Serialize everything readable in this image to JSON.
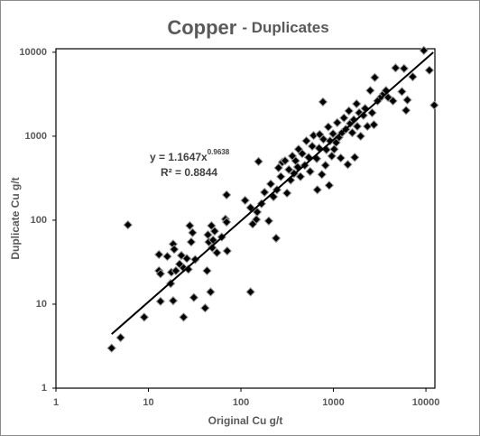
{
  "chart_data": {
    "type": "scatter",
    "title": "Copper",
    "subtitle": "- Duplicates",
    "x_label": "Original Cu g/t",
    "y_label": "Duplicate Cu g/t",
    "x_scale": "log",
    "y_scale": "log",
    "xlim": [
      1,
      12500
    ],
    "ylim": [
      1,
      11000
    ],
    "xticks": [
      1,
      10,
      100,
      1000,
      10000
    ],
    "yticks": [
      1,
      10,
      100,
      1000,
      10000
    ],
    "grid": false,
    "color": "#000000",
    "annotation": {
      "equation": "y = 1.1647x",
      "exponent": "0.9638",
      "r_squared": "R² = 0.8844"
    },
    "trendline": {
      "color": "#000000",
      "x": [
        4,
        12000
      ],
      "values": [
        4.4,
        9956
      ]
    },
    "x": [
      4,
      5,
      6,
      9,
      13,
      13,
      13.5,
      13.5,
      16,
      17.4,
      17.7,
      18.5,
      18.5,
      19,
      19.8,
      21.7,
      22.7,
      24,
      24,
      26,
      27,
      28,
      30,
      29,
      31,
      32,
      41,
      43,
      44,
      45,
      47,
      48,
      49,
      50,
      52,
      55,
      62,
      68,
      70,
      70,
      71,
      127,
      111,
      127,
      134,
      147,
      150,
      155,
      167,
      180,
      200,
      210,
      225,
      240,
      245,
      255,
      270,
      280,
      300,
      315,
      330,
      345,
      360,
      375,
      390,
      410,
      420,
      440,
      460,
      490,
      510,
      540,
      560,
      590,
      610,
      660,
      670,
      700,
      710,
      750,
      770,
      780,
      820,
      840,
      880,
      900,
      920,
      960,
      990,
      1020,
      1070,
      1100,
      1150,
      1200,
      1240,
      1300,
      1360,
      1430,
      1470,
      1520,
      1600,
      1660,
      1700,
      1780,
      1810,
      1900,
      1970,
      2110,
      2200,
      2330,
      2500,
      2620,
      2740,
      2800,
      3000,
      3300,
      3500,
      3700,
      3900,
      4400,
      4700,
      5500,
      5800,
      6100,
      6300,
      7200,
      9500,
      10900,
      12300
    ],
    "values": [
      3,
      4,
      88,
      7,
      39,
      25,
      23,
      10.8,
      37,
      17.6,
      24,
      52,
      11,
      45,
      25,
      30,
      38,
      27,
      7,
      35,
      26,
      86,
      71,
      55,
      12,
      34,
      9,
      25,
      67,
      55,
      14,
      86,
      47,
      58,
      74,
      41,
      63,
      103,
      95,
      200,
      43,
      14,
      172,
      141,
      90,
      102,
      125,
      500,
      157,
      215,
      98,
      270,
      190,
      61,
      230,
      420,
      330,
      490,
      510,
      210,
      400,
      300,
      580,
      360,
      510,
      430,
      700,
      330,
      620,
      450,
      880,
      560,
      380,
      760,
      1020,
      540,
      230,
      720,
      1050,
      350,
      2560,
      920,
      450,
      690,
      1290,
      260,
      880,
      580,
      1070,
      700,
      840,
      1450,
      970,
      550,
      1100,
      1650,
      1210,
      460,
      2000,
      1420,
      1100,
      1570,
      560,
      2430,
      1310,
      1900,
      1000,
      1770,
      2140,
      1310,
      3500,
      1900,
      1370,
      5000,
      2630,
      2950,
      3200,
      3500,
      2900,
      2630,
      6500,
      3400,
      6400,
      2030,
      2700,
      5100,
      10500,
      6100,
      2340
    ]
  }
}
